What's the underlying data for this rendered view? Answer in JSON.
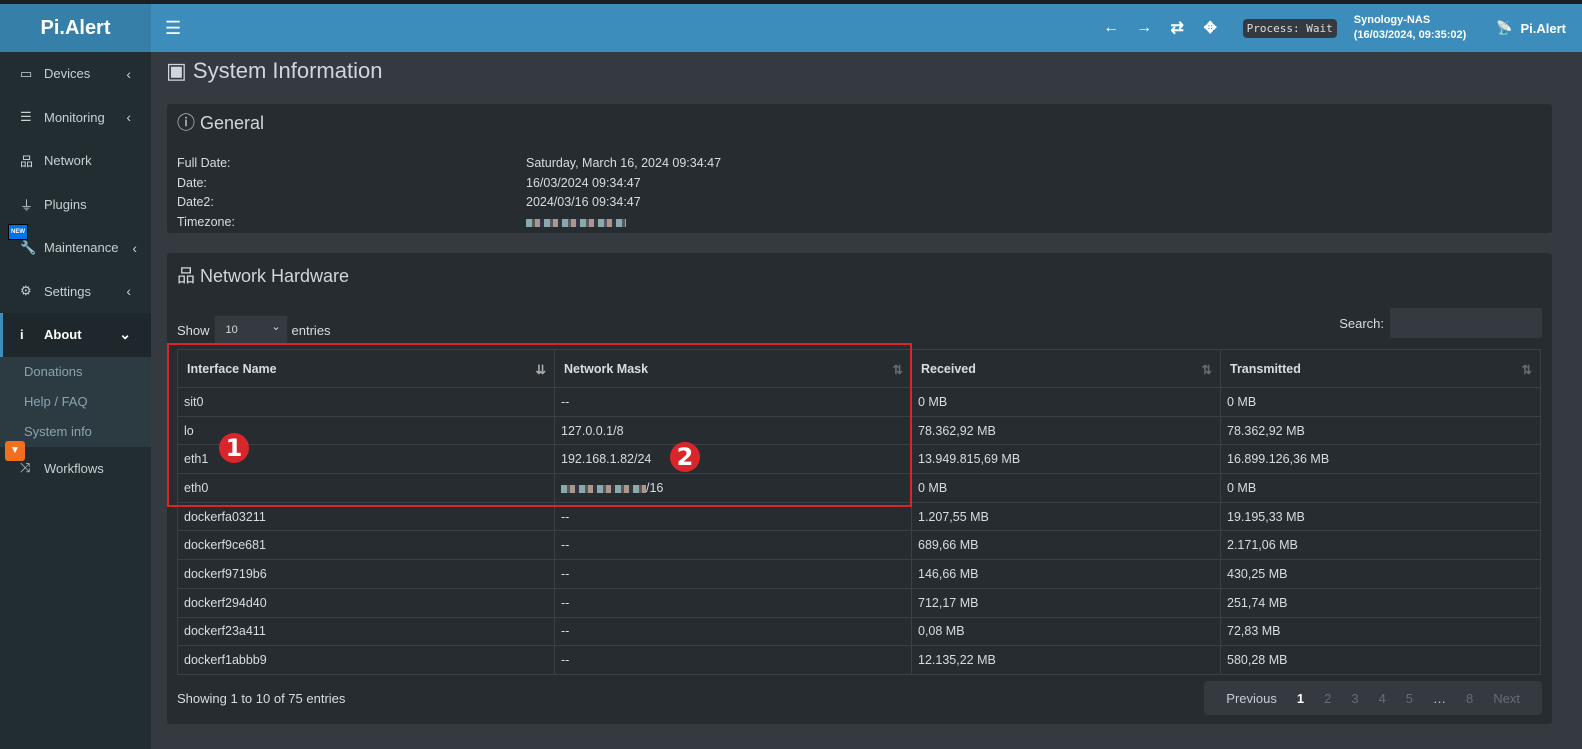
{
  "app": {
    "logo": "Pi.Alert"
  },
  "header": {
    "process": "Process: Wait",
    "host": "Synology-NAS",
    "datetime": "(16/03/2024, 09:35:02)",
    "brand": "Pi.Alert"
  },
  "sidebar": {
    "items": [
      {
        "label": "Devices"
      },
      {
        "label": "Monitoring"
      },
      {
        "label": "Network"
      },
      {
        "label": "Plugins"
      },
      {
        "label": "Maintenance"
      },
      {
        "label": "Settings"
      },
      {
        "label": "About"
      },
      {
        "label": "Workflows"
      }
    ],
    "about_sub": [
      "Donations",
      "Help / FAQ",
      "System info"
    ],
    "new_badge": "NEW"
  },
  "page": {
    "title": "System Information"
  },
  "general": {
    "title": "General",
    "rows": [
      {
        "k": "Full Date:",
        "v": "Saturday, March 16, 2024 09:34:47"
      },
      {
        "k": "Date:",
        "v": "16/03/2024 09:34:47"
      },
      {
        "k": "Date2:",
        "v": "2024/03/16 09:34:47"
      },
      {
        "k": "Timezone:",
        "v": ""
      }
    ]
  },
  "network": {
    "title": "Network Hardware",
    "show": "Show",
    "entries": "entries",
    "page_size": "10",
    "search_label": "Search:",
    "columns": [
      "Interface Name",
      "Network Mask",
      "Received",
      "Transmitted"
    ],
    "rows": [
      [
        "sit0",
        "--",
        "0 MB",
        "0 MB"
      ],
      [
        "lo",
        "127.0.0.1/8",
        "78.362,92 MB",
        "78.362,92 MB"
      ],
      [
        "eth1",
        "192.168.1.82/24",
        "13.949.815,69 MB",
        "16.899.126,36 MB"
      ],
      [
        "eth0",
        "/16",
        "0 MB",
        "0 MB"
      ],
      [
        "dockerfa03211",
        "--",
        "1.207,55 MB",
        "19.195,33 MB"
      ],
      [
        "dockerf9ce681",
        "--",
        "689,66 MB",
        "2.171,06 MB"
      ],
      [
        "dockerf9719b6",
        "--",
        "146,66 MB",
        "430,25 MB"
      ],
      [
        "dockerf294d40",
        "--",
        "712,17 MB",
        "251,74 MB"
      ],
      [
        "dockerf23a411",
        "--",
        "0,08 MB",
        "72,83 MB"
      ],
      [
        "dockerf1abbb9",
        "--",
        "12.135,22 MB",
        "580,28 MB"
      ]
    ],
    "info": "Showing 1 to 10 of 75 entries",
    "pager": [
      "Previous",
      "1",
      "2",
      "3",
      "4",
      "5",
      "…",
      "8",
      "Next"
    ]
  },
  "annotations": [
    "1",
    "2"
  ],
  "colors": {
    "header": "#3c8dbc",
    "sidebar": "#222d32",
    "annotation": "#d9262b"
  }
}
